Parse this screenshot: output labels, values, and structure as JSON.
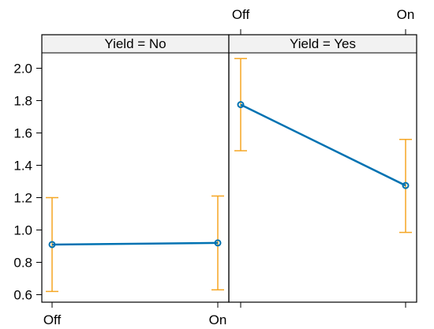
{
  "chart_data": {
    "type": "line",
    "layout": "two-panel lattice",
    "x_categories": [
      "Off",
      "On"
    ],
    "y_ticks": [
      0.6,
      0.8,
      1.0,
      1.2,
      1.4,
      1.6,
      1.8,
      2.0
    ],
    "y_tick_labels": [
      "0.6",
      "0.8",
      "1.0",
      "1.2",
      "1.4",
      "1.6",
      "1.8",
      "2.0"
    ],
    "ylim": [
      0.58,
      2.1
    ],
    "colors": {
      "line": "#0072b2",
      "error_bar": "#f5a623",
      "strip_bg": "#f2f2f2"
    },
    "panels": [
      {
        "strip": "Yield = No",
        "x_axis_position": "bottom",
        "points": [
          {
            "x": "Off",
            "y": 0.91,
            "lower": 0.62,
            "upper": 1.2
          },
          {
            "x": "On",
            "y": 0.92,
            "lower": 0.63,
            "upper": 1.21
          }
        ]
      },
      {
        "strip": "Yield = Yes",
        "x_axis_position": "top",
        "points": [
          {
            "x": "Off",
            "y": 1.775,
            "lower": 1.49,
            "upper": 2.06
          },
          {
            "x": "On",
            "y": 1.275,
            "lower": 0.985,
            "upper": 1.56
          }
        ]
      }
    ]
  }
}
